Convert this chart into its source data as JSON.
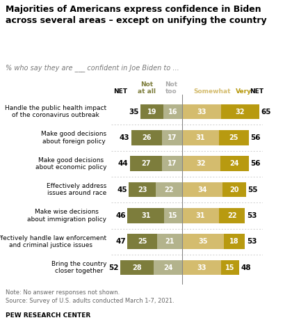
{
  "title": "Majorities of Americans express confidence in Biden\nacross several areas – except on unifying the country",
  "subtitle": "% who say they are ___ confident in Joe Biden to ...",
  "categories": [
    "Handle the public health impact\nof the coronavirus outbreak",
    "Make good decisions\nabout foreign policy",
    "Make good decisions\nabout economic policy",
    "Effectively address\nissues around race",
    "Make wise decisions\nabout immigration policy",
    "Effectively handle law enforcement\nand criminal justice issues",
    "Bring the country\ncloser together"
  ],
  "not_at_all": [
    19,
    26,
    27,
    23,
    31,
    25,
    28
  ],
  "not_too": [
    16,
    17,
    17,
    22,
    15,
    21,
    24
  ],
  "somewhat": [
    33,
    31,
    32,
    34,
    31,
    35,
    33
  ],
  "very": [
    32,
    25,
    24,
    20,
    22,
    18,
    15
  ],
  "net_left": [
    35,
    43,
    44,
    45,
    46,
    47,
    52
  ],
  "net_right": [
    65,
    56,
    56,
    55,
    53,
    53,
    48
  ],
  "color_not_at_all": "#7d7d3c",
  "color_not_too": "#b3b38c",
  "color_somewhat": "#d4bc6e",
  "color_very": "#b89a10",
  "note": "Note: No answer responses not shown.\nSource: Survey of U.S. adults conducted March 1-7, 2021.",
  "footer": "PEW RESEARCH CENTER",
  "bg_color": "#ffffff"
}
